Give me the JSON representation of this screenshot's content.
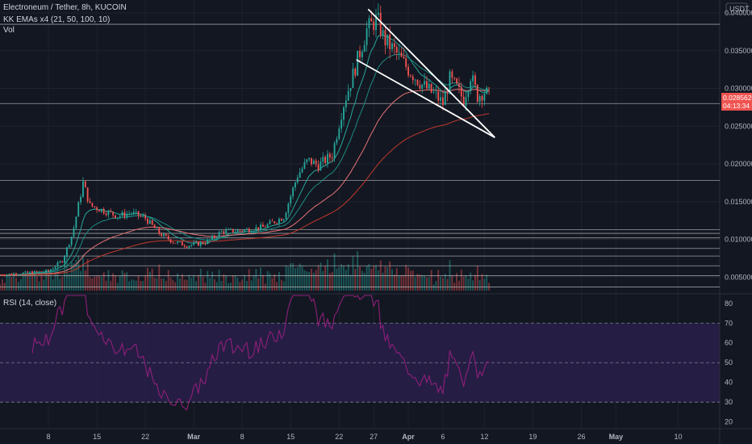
{
  "header": {
    "title": "Electroneum / Tether, 8h, KUCOIN",
    "indicator_ema": "KK EMAs x4 (21, 50, 100, 10)",
    "indicator_vol": "Vol"
  },
  "rsi_header": {
    "label": "RSI (14, close)"
  },
  "currency_label": "USDT",
  "last_price": {
    "value": "0.0285620",
    "countdown": "04:13:34"
  },
  "colors": {
    "background": "#131722",
    "grid": "#1e222d",
    "up": "#26a69a",
    "down": "#ef5350",
    "hline": "#c8c8c8",
    "rsi_line": "#8e1f7a",
    "rsi_band": "#2a1e4a",
    "price_tag": "#ef5350"
  },
  "chart_data": [
    {
      "type": "candlestick",
      "x_axis": {
        "tick_labels": [
          "8",
          "15",
          "22",
          "Mar",
          "8",
          "15",
          "22",
          "27",
          "Apr",
          "6",
          "12",
          "19",
          "26",
          "May",
          "10"
        ],
        "tick_days": [
          7,
          14,
          21,
          28,
          35,
          42,
          49,
          54,
          59,
          64,
          70,
          77,
          84,
          89,
          98
        ],
        "range_days": [
          0,
          104
        ]
      },
      "y_axis": {
        "tick_labels": [
          "0.0400000",
          "0.0350000",
          "0.0300000",
          "0.0250000",
          "0.0200000",
          "0.0150000",
          "0.0100000",
          "0.0050000"
        ],
        "tick_values": [
          0.04,
          0.035,
          0.03,
          0.025,
          0.02,
          0.015,
          0.01,
          0.005
        ],
        "range": [
          0.003,
          0.0415
        ]
      },
      "horizontal_levels": [
        0.0385,
        0.028,
        0.0178,
        0.0113,
        0.0108,
        0.0102,
        0.0088,
        0.0078,
        0.0065,
        0.0052,
        0.0037
      ],
      "trend_lines": [
        {
          "from": [
            53.2,
            0.0405
          ],
          "to": [
            71.5,
            0.0235
          ]
        },
        {
          "from": [
            51.5,
            0.0338
          ],
          "to": [
            71.5,
            0.0235
          ]
        }
      ],
      "price_anchors": {
        "days": [
          0,
          7,
          9,
          10.5,
          12,
          13,
          15,
          17,
          19,
          21,
          23,
          25,
          27,
          28.5,
          30,
          32,
          35,
          38,
          41,
          43,
          44.5,
          46,
          48,
          49.5,
          51,
          53,
          54.5,
          55.5,
          57,
          59,
          61,
          63,
          64,
          65,
          66,
          67,
          68,
          69,
          70,
          71
        ],
        "closes": [
          0.0053,
          0.0058,
          0.0072,
          0.0108,
          0.0175,
          0.0145,
          0.0138,
          0.0131,
          0.0135,
          0.0128,
          0.0108,
          0.0097,
          0.0092,
          0.0094,
          0.0097,
          0.011,
          0.0112,
          0.0116,
          0.013,
          0.0185,
          0.0205,
          0.0198,
          0.0212,
          0.0275,
          0.0318,
          0.0378,
          0.0392,
          0.0365,
          0.035,
          0.0325,
          0.0305,
          0.029,
          0.028,
          0.0312,
          0.03,
          0.0285,
          0.0318,
          0.029,
          0.0296,
          0.0288
        ]
      },
      "ema_lines": [
        {
          "period": 10,
          "color": "#26a69a"
        },
        {
          "period": 21,
          "color": "#1b8a80"
        },
        {
          "period": 50,
          "color": "#e57373"
        },
        {
          "period": 100,
          "color": "#c0392b"
        }
      ]
    },
    {
      "type": "bar",
      "name": "Vol",
      "max_relative": 1.0
    },
    {
      "type": "line",
      "name": "RSI (14, close)",
      "y_axis": {
        "tick_labels": [
          "80",
          "70",
          "60",
          "50",
          "40",
          "30",
          "20"
        ],
        "tick_values": [
          80,
          70,
          60,
          50,
          40,
          30,
          20
        ],
        "range": [
          17,
          84
        ]
      },
      "band": [
        30,
        70
      ],
      "levels": [
        70,
        50,
        30
      ]
    }
  ]
}
